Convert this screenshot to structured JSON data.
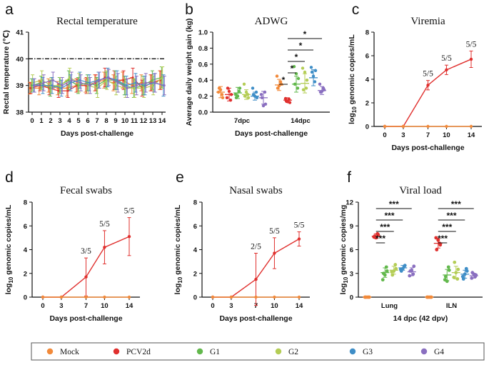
{
  "colors": {
    "Mock": "#f28a3a",
    "PCV2d": "#e0302e",
    "G1": "#62b84c",
    "G2": "#b4cd55",
    "G3": "#3f8ec7",
    "G4": "#8a6fc0",
    "axis": "#111111",
    "refline": "#111111"
  },
  "legend": {
    "items": [
      "Mock",
      "PCV2d",
      "G1",
      "G2",
      "G3",
      "G4"
    ]
  },
  "chart_data": [
    {
      "panel": "a",
      "type": "line",
      "title": "Rectal temperature",
      "xlabel": "Days post-challenge",
      "ylabel": "Rectal temperature (℃)",
      "x": [
        0,
        1,
        2,
        3,
        4,
        5,
        6,
        7,
        8,
        9,
        10,
        11,
        12,
        13,
        14
      ],
      "ylim": [
        38,
        41
      ],
      "yticks": [
        38,
        39,
        40,
        41
      ],
      "reference_line": 40,
      "series": [
        {
          "name": "Mock",
          "values": [
            38.9,
            38.9,
            39.0,
            38.9,
            38.9,
            39.0,
            39.0,
            39.1,
            39.2,
            39.1,
            39.2,
            39.0,
            39.1,
            39.1,
            39.2
          ],
          "err": [
            0.22,
            0.25,
            0.25,
            0.25,
            0.3,
            0.25,
            0.25,
            0.3,
            0.3,
            0.3,
            0.3,
            0.3,
            0.3,
            0.3,
            0.35
          ]
        },
        {
          "name": "PCV2d",
          "values": [
            38.9,
            39.0,
            38.9,
            38.8,
            38.8,
            39.0,
            39.0,
            39.1,
            39.3,
            39.2,
            39.2,
            39.3,
            38.9,
            39.1,
            39.2
          ],
          "err": [
            0.2,
            0.2,
            0.25,
            0.25,
            0.25,
            0.25,
            0.3,
            0.3,
            0.35,
            0.35,
            0.35,
            0.35,
            0.3,
            0.3,
            0.35
          ]
        },
        {
          "name": "G1",
          "values": [
            39.0,
            39.1,
            38.9,
            39.0,
            39.2,
            39.0,
            39.1,
            39.0,
            39.2,
            39.2,
            39.0,
            38.9,
            39.0,
            39.2,
            39.3
          ],
          "err": [
            0.25,
            0.25,
            0.3,
            0.3,
            0.35,
            0.3,
            0.3,
            0.3,
            0.3,
            0.35,
            0.35,
            0.35,
            0.35,
            0.35,
            0.4
          ]
        },
        {
          "name": "G2",
          "values": [
            39.1,
            39.2,
            39.0,
            39.0,
            39.3,
            39.1,
            39.0,
            38.9,
            39.2,
            39.0,
            38.9,
            38.9,
            38.9,
            39.0,
            39.3
          ],
          "err": [
            0.3,
            0.35,
            0.3,
            0.3,
            0.35,
            0.35,
            0.3,
            0.35,
            0.35,
            0.35,
            0.35,
            0.35,
            0.35,
            0.35,
            0.4
          ]
        },
        {
          "name": "G3",
          "values": [
            39.0,
            39.0,
            39.0,
            38.9,
            39.1,
            39.2,
            39.1,
            39.2,
            39.3,
            39.2,
            39.0,
            39.1,
            39.0,
            39.1,
            39.0
          ],
          "err": [
            0.25,
            0.3,
            0.3,
            0.3,
            0.3,
            0.3,
            0.3,
            0.3,
            0.35,
            0.35,
            0.35,
            0.35,
            0.35,
            0.35,
            0.4
          ]
        },
        {
          "name": "G4",
          "values": [
            39.0,
            39.1,
            39.2,
            39.0,
            39.2,
            39.1,
            39.0,
            39.2,
            39.3,
            39.1,
            38.9,
            39.0,
            39.1,
            39.1,
            39.0
          ],
          "err": [
            0.25,
            0.3,
            0.3,
            0.3,
            0.3,
            0.3,
            0.3,
            0.3,
            0.3,
            0.35,
            0.35,
            0.35,
            0.35,
            0.35,
            0.35
          ]
        }
      ]
    },
    {
      "panel": "b",
      "type": "scatter",
      "title": "ADWG",
      "xlabel": "Days post-challenge",
      "ylabel": "Average daily weight gain (kg)",
      "categories": [
        "7dpc",
        "14dpc"
      ],
      "ylim": [
        0,
        1.0
      ],
      "yticks": [
        0.0,
        0.2,
        0.4,
        0.6,
        0.8,
        1.0
      ],
      "groups": [
        {
          "name": "Mock",
          "points": [
            [
              0.25,
              0.18,
              0.3,
              0.22,
              0.28
            ],
            [
              0.45,
              0.35,
              0.3,
              0.38,
              0.33
            ]
          ],
          "mean": [
            0.25,
            0.34
          ],
          "sd": [
            0.07,
            0.07
          ]
        },
        {
          "name": "PCV2d",
          "points": [
            [
              0.18,
              0.22,
              0.3,
              0.15,
              0.26
            ],
            [
              0.17,
              0.12,
              0.14,
              0.16,
              0.13
            ]
          ],
          "mean": [
            0.22,
            0.15
          ],
          "sd": [
            0.08,
            0.03
          ]
        },
        {
          "name": "G1",
          "points": [
            [
              0.22,
              0.3,
              0.18,
              0.26,
              0.2
            ],
            [
              0.57,
              0.42,
              0.35,
              0.3,
              0.48
            ]
          ],
          "mean": [
            0.24,
            0.35
          ],
          "sd": [
            0.07,
            0.1
          ]
        },
        {
          "name": "G2",
          "points": [
            [
              0.35,
              0.18,
              0.2,
              0.22,
              0.25
            ],
            [
              0.55,
              0.4,
              0.28,
              0.3,
              0.5
            ]
          ],
          "mean": [
            0.22,
            0.36
          ],
          "sd": [
            0.06,
            0.12
          ]
        },
        {
          "name": "G3",
          "points": [
            [
              0.3,
              0.18,
              0.22,
              0.25,
              0.2
            ],
            [
              0.56,
              0.52,
              0.5,
              0.38,
              0.45
            ]
          ],
          "mean": [
            0.2,
            0.43
          ],
          "sd": [
            0.05,
            0.1
          ]
        },
        {
          "name": "G4",
          "points": [
            [
              0.22,
              0.1,
              0.18,
              0.25,
              0.08
            ],
            [
              0.35,
              0.28,
              0.25,
              0.3,
              0.26
            ]
          ],
          "mean": [
            0.18,
            0.27
          ],
          "sd": [
            0.08,
            0.05
          ]
        }
      ],
      "significance": [
        {
          "label": "*",
          "from": "PCV2d",
          "to": "Mock"
        },
        {
          "label": "*",
          "from": "PCV2d",
          "to": "G1"
        },
        {
          "label": "*",
          "from": "PCV2d",
          "to": "G2"
        },
        {
          "label": "*",
          "from": "PCV2d",
          "to": "G3"
        },
        {
          "label": "*",
          "from": "PCV2d",
          "to": "G4"
        }
      ]
    },
    {
      "panel": "c",
      "type": "line",
      "title": "Viremia",
      "xlabel": "Days post-challenge",
      "ylabel": "log10 genomic copies/mL",
      "ylabel_parts": [
        "log",
        "10",
        " genomic copies/mL"
      ],
      "x": [
        0,
        3,
        7,
        10,
        14
      ],
      "ylim": [
        0,
        8
      ],
      "yticks": [
        0,
        2,
        4,
        6,
        8
      ],
      "series": [
        {
          "name": "PCV2d",
          "values": [
            0,
            0,
            3.5,
            4.8,
            5.7
          ],
          "err": [
            0,
            0,
            0.4,
            0.4,
            0.7
          ]
        },
        {
          "name": "Mock",
          "values": [
            0,
            0,
            0,
            0,
            0
          ],
          "err": [
            0,
            0,
            0,
            0,
            0
          ]
        }
      ],
      "annotations": [
        {
          "x": 7,
          "y": 3.5,
          "text": "5/5"
        },
        {
          "x": 10,
          "y": 4.8,
          "text": "5/5"
        },
        {
          "x": 14,
          "y": 5.7,
          "text": "5/5"
        }
      ]
    },
    {
      "panel": "d",
      "type": "line",
      "title": "Fecal swabs",
      "xlabel": "Days post-challenge",
      "ylabel": "log10 genomic copies/mL",
      "ylabel_parts": [
        "log",
        "10",
        " genomic copies/mL"
      ],
      "x": [
        0,
        3,
        7,
        10,
        14
      ],
      "ylim": [
        0,
        8
      ],
      "yticks": [
        0,
        2,
        4,
        6,
        8
      ],
      "series": [
        {
          "name": "PCV2d",
          "values": [
            0,
            0,
            1.7,
            4.2,
            5.1
          ],
          "err": [
            0,
            0,
            1.6,
            1.4,
            1.6
          ]
        },
        {
          "name": "Mock",
          "values": [
            0,
            0,
            0,
            0,
            0
          ],
          "err": [
            0,
            0,
            0,
            0,
            0
          ]
        }
      ],
      "annotations": [
        {
          "x": 7,
          "y": 1.7,
          "text": "3/5"
        },
        {
          "x": 10,
          "y": 4.2,
          "text": "5/5"
        },
        {
          "x": 14,
          "y": 5.1,
          "text": "5/5"
        }
      ]
    },
    {
      "panel": "e",
      "type": "line",
      "title": "Nasal swabs",
      "xlabel": "Days post-challenge",
      "ylabel": "log10 genomic copies/mL",
      "ylabel_parts": [
        "log",
        "10",
        " genomic copies/mL"
      ],
      "x": [
        0,
        3,
        7,
        10,
        14
      ],
      "ylim": [
        0,
        8
      ],
      "yticks": [
        0,
        2,
        4,
        6,
        8
      ],
      "series": [
        {
          "name": "PCV2d",
          "values": [
            0,
            0,
            1.5,
            3.7,
            4.9
          ],
          "err": [
            0,
            0,
            2.2,
            1.3,
            0.6
          ]
        },
        {
          "name": "Mock",
          "values": [
            0,
            0,
            0,
            0,
            0
          ],
          "err": [
            0,
            0,
            0,
            0,
            0
          ]
        }
      ],
      "annotations": [
        {
          "x": 7,
          "y": 1.5,
          "text": "2/5"
        },
        {
          "x": 10,
          "y": 3.7,
          "text": "5/5"
        },
        {
          "x": 14,
          "y": 4.9,
          "text": "5/5"
        }
      ]
    },
    {
      "panel": "f",
      "type": "scatter",
      "title": "Viral load",
      "xlabel": "14 dpc (42 dpv)",
      "ylabel": "log10 genomic copies/mg",
      "ylabel_parts": [
        "log",
        "10",
        " genomic copies/mg"
      ],
      "categories": [
        "Lung",
        "ILN"
      ],
      "ylim": [
        0,
        12
      ],
      "yticks": [
        0,
        3,
        6,
        9,
        12
      ],
      "groups": [
        {
          "name": "Mock",
          "points": [
            [
              0,
              0,
              0,
              0,
              0
            ],
            [
              0,
              0,
              0,
              0,
              0
            ]
          ],
          "mean": [
            0,
            0
          ],
          "sd": [
            0,
            0
          ]
        },
        {
          "name": "PCV2d",
          "points": [
            [
              7.6,
              7.9,
              7.7,
              8.0,
              7.5
            ],
            [
              7.5,
              6.6,
              6.0,
              6.8,
              7.2
            ]
          ],
          "mean": [
            7.7,
            6.8
          ],
          "sd": [
            0.3,
            0.6
          ]
        },
        {
          "name": "G1",
          "points": [
            [
              2.2,
              3.3,
              3.0,
              3.8,
              2.8
            ],
            [
              2.2,
              3.4,
              2.6,
              3.8,
              2.0
            ]
          ],
          "mean": [
            3.1,
            2.8
          ],
          "sd": [
            0.6,
            0.7
          ]
        },
        {
          "name": "G2",
          "points": [
            [
              3.2,
              3.6,
              2.8,
              4.1,
              3.3
            ],
            [
              2.5,
              3.5,
              4.4,
              2.3,
              3.1
            ]
          ],
          "mean": [
            3.4,
            3.1
          ],
          "sd": [
            0.5,
            0.8
          ]
        },
        {
          "name": "G3",
          "points": [
            [
              3.5,
              4.0,
              3.3,
              3.9,
              3.6
            ],
            [
              2.6,
              3.3,
              2.3,
              3.6,
              2.9
            ]
          ],
          "mean": [
            3.7,
            2.9
          ],
          "sd": [
            0.3,
            0.5
          ]
        },
        {
          "name": "G4",
          "points": [
            [
              2.7,
              3.9,
              3.3,
              2.9,
              3.4
            ],
            [
              2.4,
              2.8,
              3.1,
              2.6,
              2.9
            ]
          ],
          "mean": [
            3.2,
            2.7
          ],
          "sd": [
            0.5,
            0.3
          ]
        }
      ],
      "significance": [
        {
          "label": "***",
          "from": "PCV2d",
          "to": "G1"
        },
        {
          "label": "***",
          "from": "PCV2d",
          "to": "G2"
        },
        {
          "label": "***",
          "from": "PCV2d",
          "to": "G3"
        },
        {
          "label": "***",
          "from": "PCV2d",
          "to": "G4"
        }
      ]
    }
  ]
}
